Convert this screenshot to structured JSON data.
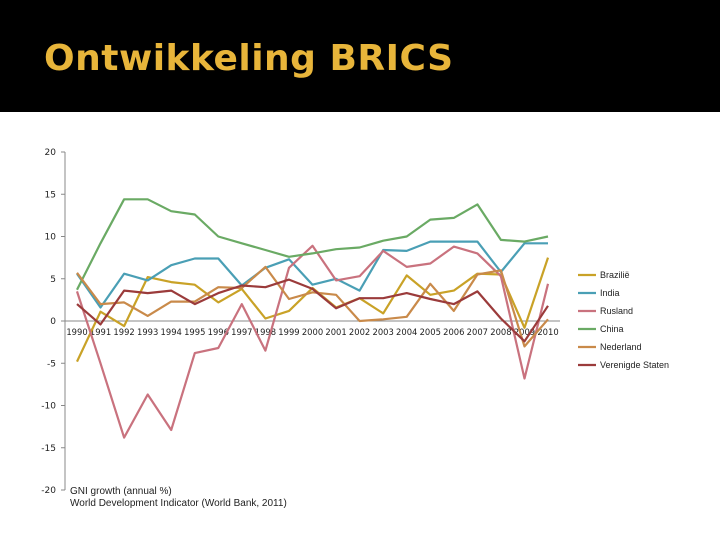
{
  "slide": {
    "title": "Ontwikkeling BRICS",
    "source_line1": "GNI growth (annual %)",
    "source_line2": "World Development Indicator (World Bank, 2011)"
  },
  "chart_data": {
    "type": "line",
    "title": "",
    "xlabel": "",
    "ylabel": "",
    "ylim": [
      -20,
      20
    ],
    "yticks": [
      20,
      15,
      10,
      5,
      0,
      -5,
      -10,
      -15,
      -20
    ],
    "grid": false,
    "legend_position": "right",
    "x": [
      "1990",
      "1991",
      "1992",
      "1993",
      "1994",
      "1995",
      "1996",
      "1997",
      "1998",
      "1999",
      "2000",
      "2001",
      "2002",
      "2003",
      "2004",
      "2005",
      "2006",
      "2007",
      "2008",
      "2009",
      "2010"
    ],
    "series": [
      {
        "name": "Brazilië",
        "color": "#c9a227",
        "values": [
          -4.8,
          1.1,
          -0.6,
          5.2,
          4.6,
          4.3,
          2.2,
          3.8,
          0.3,
          1.2,
          3.9,
          1.6,
          2.7,
          0.9,
          5.4,
          3.1,
          3.6,
          5.6,
          5.5,
          -0.8,
          7.5
        ]
      },
      {
        "name": "India",
        "color": "#4a9fb5",
        "values": [
          5.6,
          1.6,
          5.6,
          4.8,
          6.6,
          7.4,
          7.4,
          4.2,
          6.3,
          7.3,
          4.3,
          5.0,
          3.6,
          8.4,
          8.3,
          9.4,
          9.4,
          9.4,
          5.8,
          9.2,
          9.2
        ]
      },
      {
        "name": "Rusland",
        "color": "#c9727e",
        "values": [
          3.5,
          -5.0,
          -13.8,
          -8.7,
          -12.9,
          -3.8,
          -3.2,
          2.0,
          -3.5,
          6.3,
          8.9,
          4.8,
          5.3,
          8.3,
          6.4,
          6.8,
          8.8,
          8.0,
          5.3,
          -6.8,
          4.4
        ]
      },
      {
        "name": "China",
        "color": "#6aaa64",
        "values": [
          3.7,
          9.2,
          14.4,
          14.4,
          13.0,
          12.6,
          10.0,
          9.2,
          8.4,
          7.6,
          8.0,
          8.5,
          8.7,
          9.5,
          10.0,
          12.0,
          12.2,
          13.8,
          9.6,
          9.4,
          10.0
        ]
      },
      {
        "name": "Nederland",
        "color": "#c98a4a",
        "values": [
          5.7,
          2.0,
          2.2,
          0.6,
          2.3,
          2.3,
          4.0,
          3.9,
          6.4,
          2.6,
          3.4,
          3.1,
          0.0,
          0.2,
          0.5,
          4.4,
          1.2,
          5.5,
          6.0,
          -3.0,
          0.2
        ]
      },
      {
        "name": "Verenigde Staten",
        "color": "#9b3b3b",
        "values": [
          2.0,
          -0.4,
          3.6,
          3.3,
          3.6,
          2.0,
          3.3,
          4.2,
          4.0,
          4.9,
          3.8,
          1.5,
          2.7,
          2.7,
          3.3,
          2.6,
          2.0,
          3.5,
          0.3,
          -2.4,
          1.8
        ]
      }
    ]
  }
}
